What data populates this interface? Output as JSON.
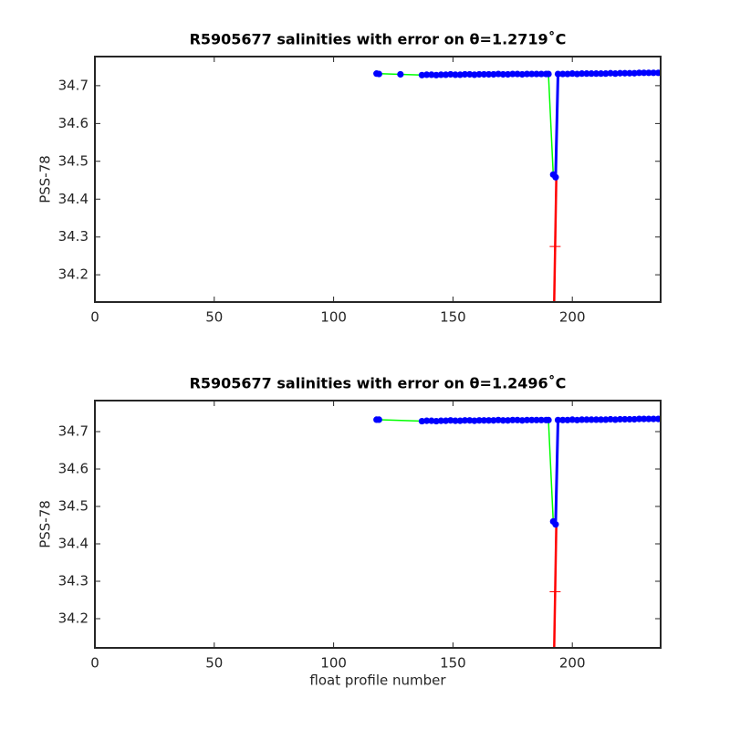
{
  "chart_data": [
    {
      "type": "line",
      "title": "R5905677 salinities with error on θ=1.2719˚C",
      "ylabel": "PSS-78",
      "xlim": [
        0,
        237
      ],
      "xticks": [
        0,
        50,
        100,
        150,
        200
      ],
      "ylim": [
        34.128,
        34.777
      ],
      "yticks": [
        34.2,
        34.3,
        34.4,
        34.5,
        34.6,
        34.7
      ],
      "series": [
        {
          "color": "#00ff00",
          "marker": "none",
          "width": 1.5,
          "x": [
            118,
            128,
            137,
            190,
            192
          ],
          "values": [
            34.732,
            34.73,
            34.728,
            34.731,
            34.465
          ]
        },
        {
          "color": "#ff0000",
          "marker": "none",
          "width": 2.5,
          "x": [
            192.4,
            193.3
          ],
          "values": [
            34.128,
            34.458
          ]
        },
        {
          "color": "#ff0000",
          "marker": "+",
          "width": 1,
          "x": [
            192.8
          ],
          "values": [
            34.275
          ]
        },
        {
          "color": "#0000ff",
          "marker": "o",
          "width": 3,
          "x": [
            118,
            119,
            127,
            128,
            129,
            137,
            139,
            141,
            143,
            145,
            147,
            149,
            151,
            153,
            155,
            157,
            159,
            161,
            163,
            165,
            167,
            169,
            171,
            173,
            175,
            177,
            179,
            181,
            183,
            185,
            187,
            189,
            190,
            191,
            192,
            193,
            194,
            196,
            198,
            200,
            202,
            204,
            206,
            208,
            210,
            212,
            214,
            216,
            218,
            220,
            222,
            224,
            226,
            228,
            230,
            232,
            234,
            236
          ],
          "values": [
            34.732,
            34.731,
            null,
            34.73,
            null,
            34.728,
            34.729,
            34.729,
            34.728,
            34.729,
            34.729,
            34.73,
            34.729,
            34.729,
            34.73,
            34.73,
            34.729,
            34.73,
            34.73,
            34.73,
            34.73,
            34.731,
            34.73,
            34.73,
            34.731,
            34.731,
            34.73,
            34.731,
            34.731,
            34.731,
            34.731,
            34.731,
            34.731,
            null,
            34.465,
            34.458,
            34.731,
            34.731,
            34.731,
            34.732,
            34.731,
            34.732,
            34.732,
            34.732,
            34.732,
            34.732,
            34.732,
            34.733,
            34.732,
            34.733,
            34.733,
            34.733,
            34.733,
            34.734,
            34.734,
            34.734,
            34.734,
            34.734
          ]
        }
      ]
    },
    {
      "type": "line",
      "title": "R5905677 salinities with error on θ=1.2496˚C",
      "ylabel": "PSS-78",
      "xlabel": "float profile number",
      "xlim": [
        0,
        237
      ],
      "xticks": [
        0,
        50,
        100,
        150,
        200
      ],
      "ylim": [
        34.122,
        34.783
      ],
      "yticks": [
        34.2,
        34.3,
        34.4,
        34.5,
        34.6,
        34.7
      ],
      "series": [
        {
          "color": "#00ff00",
          "marker": "none",
          "width": 1.5,
          "x": [
            118,
            137,
            190,
            192
          ],
          "values": [
            34.732,
            34.728,
            34.731,
            34.46
          ]
        },
        {
          "color": "#ff0000",
          "marker": "none",
          "width": 2.5,
          "x": [
            192.4,
            193.3
          ],
          "values": [
            34.122,
            34.452
          ]
        },
        {
          "color": "#ff0000",
          "marker": "+",
          "width": 1,
          "x": [
            192.8
          ],
          "values": [
            34.272
          ]
        },
        {
          "color": "#0000ff",
          "marker": "o",
          "width": 3,
          "x": [
            118,
            119,
            128,
            137,
            139,
            141,
            143,
            145,
            147,
            149,
            151,
            153,
            155,
            157,
            159,
            161,
            163,
            165,
            167,
            169,
            171,
            173,
            175,
            177,
            179,
            181,
            183,
            185,
            187,
            189,
            190,
            191,
            192,
            193,
            194,
            196,
            198,
            200,
            202,
            204,
            206,
            208,
            210,
            212,
            214,
            216,
            218,
            220,
            222,
            224,
            226,
            228,
            230,
            232,
            234,
            236
          ],
          "values": [
            34.732,
            34.732,
            null,
            34.728,
            34.729,
            34.729,
            34.728,
            34.729,
            34.729,
            34.73,
            34.729,
            34.729,
            34.73,
            34.73,
            34.729,
            34.73,
            34.73,
            34.73,
            34.73,
            34.731,
            34.73,
            34.73,
            34.731,
            34.731,
            34.73,
            34.731,
            34.731,
            34.731,
            34.731,
            34.731,
            34.731,
            null,
            34.46,
            34.452,
            34.731,
            34.731,
            34.731,
            34.732,
            34.731,
            34.732,
            34.732,
            34.732,
            34.732,
            34.732,
            34.732,
            34.733,
            34.732,
            34.733,
            34.733,
            34.733,
            34.733,
            34.734,
            34.734,
            34.734,
            34.734,
            34.734
          ]
        }
      ]
    }
  ]
}
